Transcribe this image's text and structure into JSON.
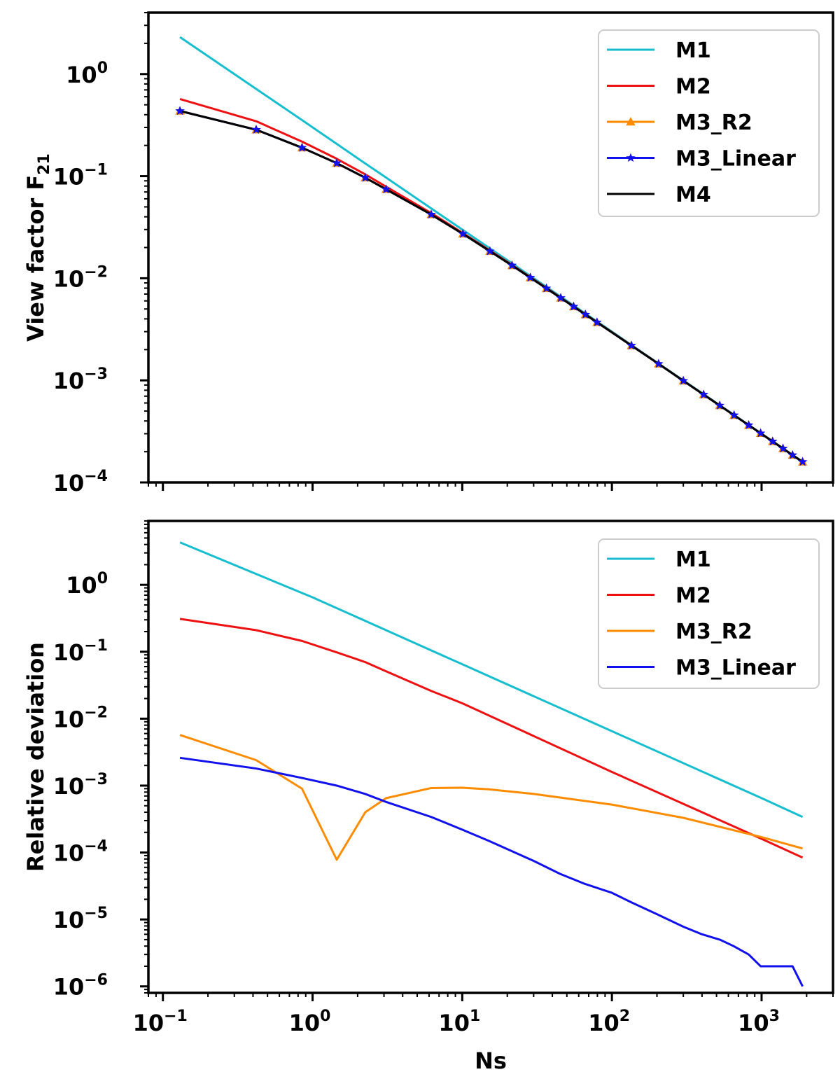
{
  "chart_data": [
    {
      "type": "line",
      "ylabel": "View factor F",
      "ylabel_sub": "21",
      "xscale": "log",
      "yscale": "log",
      "xlim": [
        0.08,
        3000
      ],
      "ylim": [
        0.0001,
        4.0
      ],
      "legend_position": "top-right",
      "x": [
        0.13,
        0.42,
        0.85,
        1.45,
        2.25,
        3.1,
        6.2,
        10.1,
        15.3,
        21.5,
        28.5,
        36.5,
        45.5,
        55.5,
        66.5,
        79.5,
        135,
        205,
        300,
        410,
        525,
        655,
        820,
        985,
        1185,
        1390,
        1610,
        1880
      ],
      "series": [
        {
          "name": "M1",
          "color": "#17becf",
          "marker": "none",
          "values": [
            2.3,
            0.715,
            0.354,
            0.207,
            0.133,
            0.0968,
            0.0483,
            0.0297,
            0.0196,
            0.014,
            0.01053,
            0.00822,
            0.0066,
            0.00541,
            0.00451,
            0.00377,
            0.00222,
            0.00146,
            0.001,
            0.000732,
            0.000571,
            0.000458,
            0.000366,
            0.000305,
            0.000253,
            0.000216,
            0.000186,
            0.00016
          ]
        },
        {
          "name": "M2",
          "color": "#ee1111",
          "marker": "none",
          "values": [
            0.57,
            0.345,
            0.218,
            0.148,
            0.104,
            0.0788,
            0.0435,
            0.0277,
            0.0187,
            0.0135,
            0.01025,
            0.00803,
            0.00646,
            0.00531,
            0.00443,
            0.00372,
            0.0022,
            0.00145,
            0.000991,
            0.000726,
            0.000567,
            0.000455,
            0.000364,
            0.000303,
            0.000252,
            0.000215,
            0.000185,
            0.000159
          ]
        },
        {
          "name": "M3_R2",
          "color": "#ff8c00",
          "marker": "triangle",
          "values": [
            0.435,
            0.285,
            0.19,
            0.134,
            0.0965,
            0.0743,
            0.0421,
            0.0272,
            0.0184,
            0.01335,
            0.01015,
            0.00796,
            0.00641,
            0.00528,
            0.00441,
            0.0037,
            0.00219,
            0.00145,
            0.00099,
            0.000725,
            0.000567,
            0.000455,
            0.000364,
            0.000303,
            0.000252,
            0.000215,
            0.000185,
            0.000159
          ]
        },
        {
          "name": "M3_Linear",
          "color": "#1111ee",
          "marker": "star",
          "values": [
            0.435,
            0.285,
            0.19,
            0.134,
            0.0965,
            0.0743,
            0.0421,
            0.0272,
            0.0184,
            0.01335,
            0.01015,
            0.00796,
            0.00641,
            0.00528,
            0.00441,
            0.0037,
            0.00219,
            0.00145,
            0.00099,
            0.000725,
            0.000567,
            0.000455,
            0.000364,
            0.000303,
            0.000252,
            0.000215,
            0.000185,
            0.000159
          ]
        },
        {
          "name": "M4",
          "color": "#000000",
          "marker": "none",
          "values": [
            0.435,
            0.285,
            0.19,
            0.134,
            0.0965,
            0.0743,
            0.0421,
            0.0272,
            0.0184,
            0.01335,
            0.01015,
            0.00796,
            0.00641,
            0.00528,
            0.00441,
            0.0037,
            0.00219,
            0.00145,
            0.00099,
            0.000725,
            0.000567,
            0.000455,
            0.000364,
            0.000303,
            0.000252,
            0.000215,
            0.000185,
            0.000159
          ]
        }
      ]
    },
    {
      "type": "line",
      "xlabel": "Ns",
      "ylabel": "Relative deviation",
      "xscale": "log",
      "yscale": "log",
      "xlim": [
        0.08,
        3000
      ],
      "ylim": [
        8e-07,
        9.0
      ],
      "legend_position": "top-right",
      "series": [
        {
          "name": "M1",
          "color": "#17becf",
          "x": [
            0.13,
            1.0,
            10.0,
            100.0,
            1000.0,
            1880
          ],
          "values": [
            4.3,
            0.65,
            0.065,
            0.0065,
            0.00065,
            0.00034
          ]
        },
        {
          "name": "M2",
          "color": "#ee1111",
          "x": [
            0.13,
            0.42,
            0.85,
            1.45,
            2.25,
            3.1,
            6.2,
            10.0,
            100.0,
            1000.0,
            1880
          ],
          "values": [
            0.31,
            0.21,
            0.145,
            0.098,
            0.07,
            0.051,
            0.026,
            0.017,
            0.0016,
            0.00016,
            8.4e-05
          ]
        },
        {
          "name": "M3_R2",
          "color": "#ff8c00",
          "x": [
            0.13,
            0.42,
            0.85,
            1.45,
            2.25,
            3.1,
            6.2,
            10.0,
            15.0,
            30.0,
            100.0,
            300.0,
            1000.0,
            1880
          ],
          "values": [
            0.0057,
            0.0024,
            0.0009,
            7.8e-05,
            0.0004,
            0.00065,
            0.00092,
            0.00093,
            0.00088,
            0.00075,
            0.00052,
            0.00033,
            0.00017,
            0.000115
          ]
        },
        {
          "name": "M3_Linear",
          "color": "#1111ee",
          "x": [
            0.13,
            0.42,
            0.85,
            1.45,
            2.25,
            3.1,
            6.2,
            10.0,
            15.0,
            30.0,
            45.0,
            66.0,
            100.0,
            135.0,
            200.0,
            300.0,
            400.0,
            525.0,
            650.0,
            820.0,
            985.0,
            1185.0,
            1390.0,
            1610.0,
            1880.0
          ],
          "values": [
            0.0026,
            0.0018,
            0.0013,
            0.001,
            0.00075,
            0.00057,
            0.00034,
            0.00022,
            0.00015,
            7.5e-05,
            4.8e-05,
            3.4e-05,
            2.5e-05,
            1.8e-05,
            1.2e-05,
            7.8e-06,
            6e-06,
            5e-06,
            4e-06,
            3e-06,
            2e-06,
            2e-06,
            2e-06,
            2e-06,
            1e-06
          ]
        }
      ]
    }
  ]
}
